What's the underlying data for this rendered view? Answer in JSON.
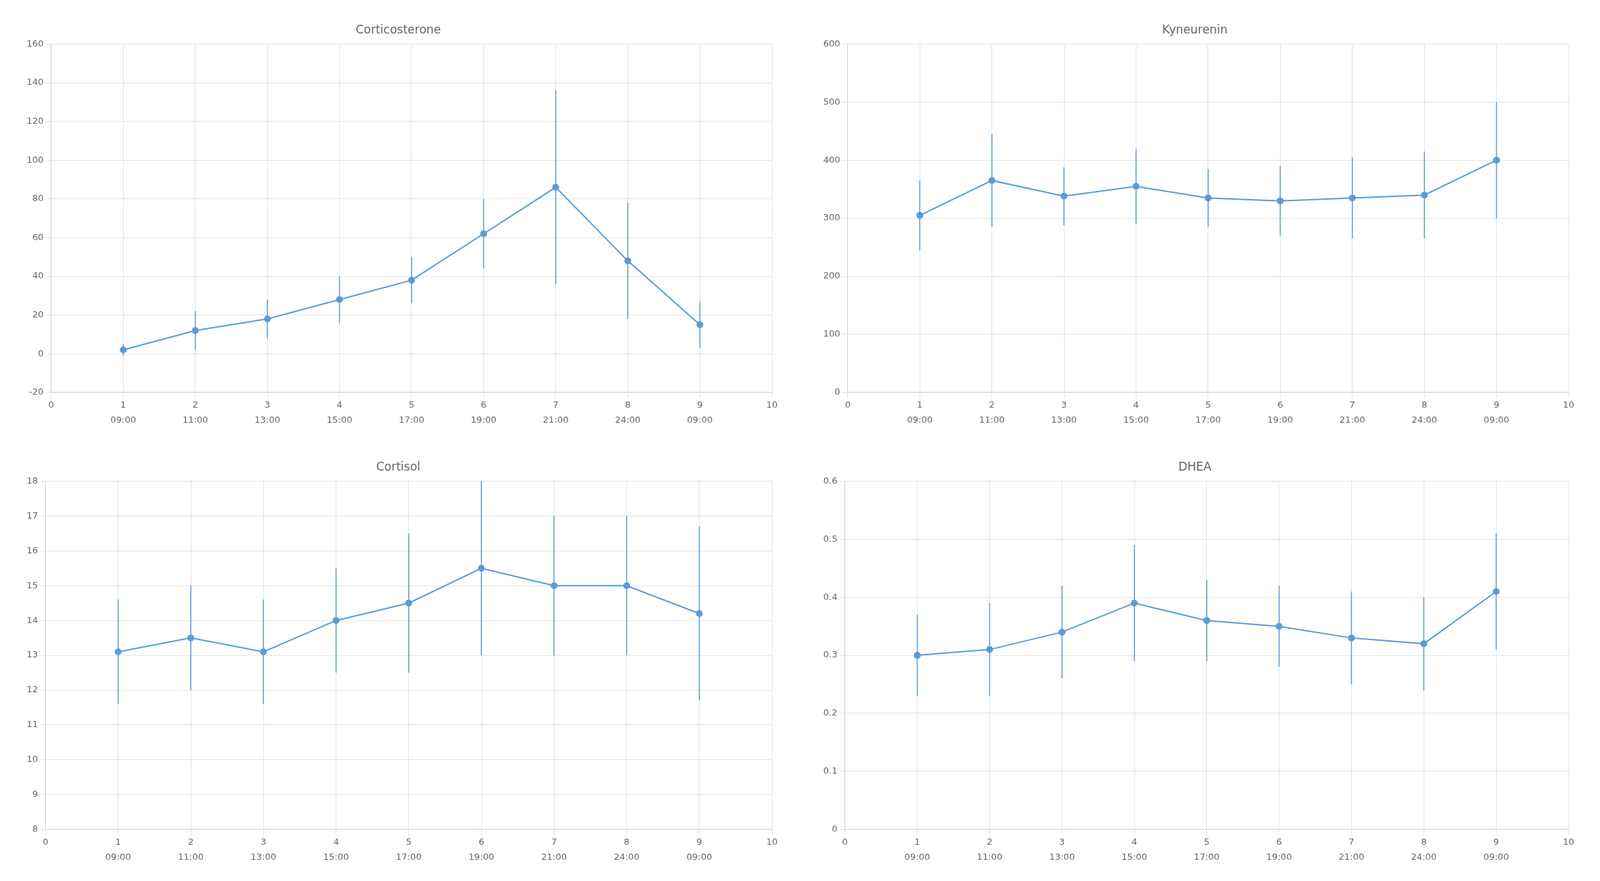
{
  "chart_data": [
    {
      "type": "line",
      "title": "Corticosterone",
      "x": [
        1,
        2,
        3,
        4,
        5,
        6,
        7,
        8,
        9
      ],
      "values": [
        2,
        12,
        18,
        28,
        38,
        62,
        86,
        48,
        15
      ],
      "yerr": [
        3,
        10,
        10,
        12,
        12,
        18,
        50,
        30,
        12
      ],
      "color": "#5b9bd5",
      "marker": "circle",
      "line_style": "solid",
      "xlim": [
        0,
        10
      ],
      "xticks": [
        0,
        1,
        2,
        3,
        4,
        5,
        6,
        7,
        8,
        9,
        10
      ],
      "x2ticks": [
        {
          "value": 1,
          "label": "09:00"
        },
        {
          "value": 2,
          "label": "11:00"
        },
        {
          "value": 3,
          "label": "13:00"
        },
        {
          "value": 4,
          "label": "15:00"
        },
        {
          "value": 5,
          "label": "17:00"
        },
        {
          "value": 6,
          "label": "19:00"
        },
        {
          "value": 7,
          "label": "21:00"
        },
        {
          "value": 8,
          "label": "24:00"
        },
        {
          "value": 9,
          "label": "09:00"
        }
      ],
      "ylim": [
        -20,
        160
      ],
      "yticks": [
        -20,
        0,
        20,
        40,
        60,
        80,
        100,
        120,
        140,
        160
      ],
      "grid": true
    },
    {
      "type": "line",
      "title": "Kyneurenin",
      "x": [
        1,
        2,
        3,
        4,
        5,
        6,
        7,
        8,
        9
      ],
      "values": [
        305,
        365,
        338,
        355,
        335,
        330,
        335,
        340,
        400
      ],
      "yerr": [
        60,
        80,
        50,
        65,
        50,
        60,
        70,
        75,
        100
      ],
      "color": "#5b9bd5",
      "marker": "circle",
      "line_style": "solid",
      "xlim": [
        0,
        10
      ],
      "xticks": [
        0,
        1,
        2,
        3,
        4,
        5,
        6,
        7,
        8,
        9,
        10
      ],
      "x2ticks": [
        {
          "value": 1,
          "label": "09:00"
        },
        {
          "value": 2,
          "label": "11:00"
        },
        {
          "value": 3,
          "label": "13:00"
        },
        {
          "value": 4,
          "label": "15:00"
        },
        {
          "value": 5,
          "label": "17:00"
        },
        {
          "value": 6,
          "label": "19:00"
        },
        {
          "value": 7,
          "label": "21:00"
        },
        {
          "value": 8,
          "label": "24:00"
        },
        {
          "value": 9,
          "label": "09:00"
        }
      ],
      "ylim": [
        0,
        600
      ],
      "yticks": [
        0,
        100,
        200,
        300,
        400,
        500,
        600
      ],
      "grid": true
    },
    {
      "type": "line",
      "title": "Cortisol",
      "x": [
        1,
        2,
        3,
        4,
        5,
        6,
        7,
        8,
        9
      ],
      "values": [
        13.1,
        13.5,
        13.1,
        14.0,
        14.5,
        15.5,
        15.0,
        15.0,
        14.2
      ],
      "yerr": [
        1.5,
        1.5,
        1.5,
        1.5,
        2.0,
        2.5,
        2.0,
        2.0,
        2.5
      ],
      "color": "#5b9bd5",
      "marker": "circle",
      "line_style": "solid",
      "xlim": [
        0,
        10
      ],
      "xticks": [
        0,
        1,
        2,
        3,
        4,
        5,
        6,
        7,
        8,
        9,
        10
      ],
      "x2ticks": [
        {
          "value": 1,
          "label": "09:00"
        },
        {
          "value": 2,
          "label": "11:00"
        },
        {
          "value": 3,
          "label": "13:00"
        },
        {
          "value": 4,
          "label": "15:00"
        },
        {
          "value": 5,
          "label": "17:00"
        },
        {
          "value": 6,
          "label": "19:00"
        },
        {
          "value": 7,
          "label": "21:00"
        },
        {
          "value": 8,
          "label": "24:00"
        },
        {
          "value": 9,
          "label": "09:00"
        }
      ],
      "ylim": [
        8,
        18
      ],
      "yticks": [
        8,
        9,
        10,
        11,
        12,
        13,
        14,
        15,
        16,
        17,
        18
      ],
      "grid": true
    },
    {
      "type": "line",
      "title": "DHEA",
      "x": [
        1,
        2,
        3,
        4,
        5,
        6,
        7,
        8,
        9
      ],
      "values": [
        0.3,
        0.31,
        0.34,
        0.39,
        0.36,
        0.35,
        0.33,
        0.32,
        0.41
      ],
      "yerr": [
        0.07,
        0.08,
        0.08,
        0.1,
        0.07,
        0.07,
        0.08,
        0.08,
        0.1
      ],
      "color": "#5b9bd5",
      "marker": "circle",
      "line_style": "solid",
      "xlim": [
        0,
        10
      ],
      "xticks": [
        0,
        1,
        2,
        3,
        4,
        5,
        6,
        7,
        8,
        9,
        10
      ],
      "x2ticks": [
        {
          "value": 1,
          "label": "09:00"
        },
        {
          "value": 2,
          "label": "11:00"
        },
        {
          "value": 3,
          "label": "13:00"
        },
        {
          "value": 4,
          "label": "15:00"
        },
        {
          "value": 5,
          "label": "17:00"
        },
        {
          "value": 6,
          "label": "19:00"
        },
        {
          "value": 7,
          "label": "21:00"
        },
        {
          "value": 8,
          "label": "24:00"
        },
        {
          "value": 9,
          "label": "09:00"
        }
      ],
      "ylim": [
        0,
        0.6
      ],
      "yticks": [
        0,
        0.1,
        0.2,
        0.3,
        0.4,
        0.5,
        0.6
      ],
      "grid": true
    }
  ]
}
